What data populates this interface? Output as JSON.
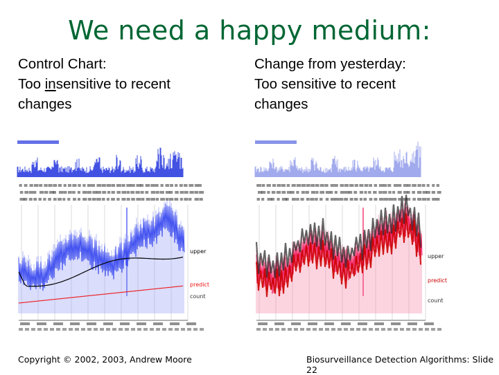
{
  "slide": {
    "title": "We need a happy medium:",
    "left": {
      "heading": "Control Chart:",
      "desc_prefix": "Too ",
      "desc_underlined": "in",
      "desc_rest": "sensitive to recent",
      "desc_line2": "changes"
    },
    "right": {
      "heading": "Change from yesterday:",
      "desc_line1": "Too sensitive to recent",
      "desc_line2": "changes"
    },
    "footer_left": "Copyright © 2002, 2003, Andrew Moore",
    "footer_right": "Biosurveillance Detection Algorithms: Slide 22"
  },
  "chart_data": [
    {
      "type": "line",
      "name": "control-chart",
      "series": [
        {
          "name": "count",
          "color": "#2222ff"
        },
        {
          "name": "upper",
          "color": "#000000"
        },
        {
          "name": "predict",
          "color": "#ff0000"
        }
      ],
      "legend": [
        "upper",
        "predict",
        "count"
      ],
      "colors": {
        "count": "#3344ee",
        "upper": "#000000",
        "predict": "#ee1111",
        "overview": "#2233dd"
      }
    },
    {
      "type": "line",
      "name": "change-from-yesterday",
      "series": [
        {
          "name": "count",
          "color": "#ee1144"
        },
        {
          "name": "upper",
          "color": "#333333"
        },
        {
          "name": "predict",
          "color": "#ee0000"
        }
      ],
      "legend": [
        "upper",
        "predict",
        "count"
      ],
      "colors": {
        "count": "#ee1155",
        "upper": "#222222",
        "predict": "#cc0000",
        "overview": "#5566dd"
      }
    }
  ]
}
